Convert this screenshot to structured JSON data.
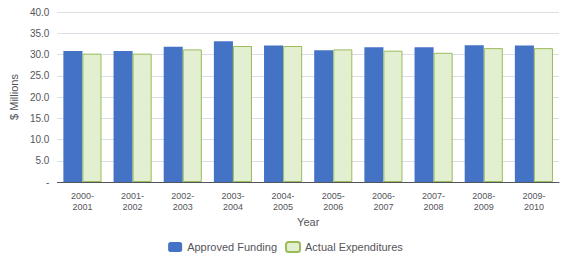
{
  "chart_data": {
    "type": "bar",
    "xlabel": "Year",
    "ylabel": "$ Millions",
    "categories": [
      "2000-\n2001",
      "2001-\n2002",
      "2002-\n2003",
      "2003-\n2004",
      "2004-\n2005",
      "2005-\n2006",
      "2006-\n2007",
      "2007-\n2008",
      "2008-\n2009",
      "2009-\n2010"
    ],
    "series": [
      {
        "name": "Approved Funding",
        "color": "#4472C4",
        "values": [
          30.8,
          30.8,
          31.8,
          33.1,
          32.1,
          31.0,
          31.7,
          31.7,
          32.2,
          32.1
        ]
      },
      {
        "name": "Actual Expenditures",
        "color": "#E2EFD0",
        "values": [
          30.2,
          30.2,
          31.2,
          32.0,
          32.0,
          31.2,
          30.9,
          30.4,
          31.5,
          31.5
        ]
      }
    ],
    "ylim": [
      0,
      40
    ],
    "yticks": [
      {
        "value": 0,
        "label": "-"
      },
      {
        "value": 5,
        "label": "5.0"
      },
      {
        "value": 10,
        "label": "10.0"
      },
      {
        "value": 15,
        "label": "15.0"
      },
      {
        "value": 20,
        "label": "20.0"
      },
      {
        "value": 25,
        "label": "25.0"
      },
      {
        "value": 30,
        "label": "30.0"
      },
      {
        "value": 35,
        "label": "35.0"
      },
      {
        "value": 40,
        "label": "40.0"
      }
    ],
    "grid": true,
    "legend": "bottom"
  }
}
